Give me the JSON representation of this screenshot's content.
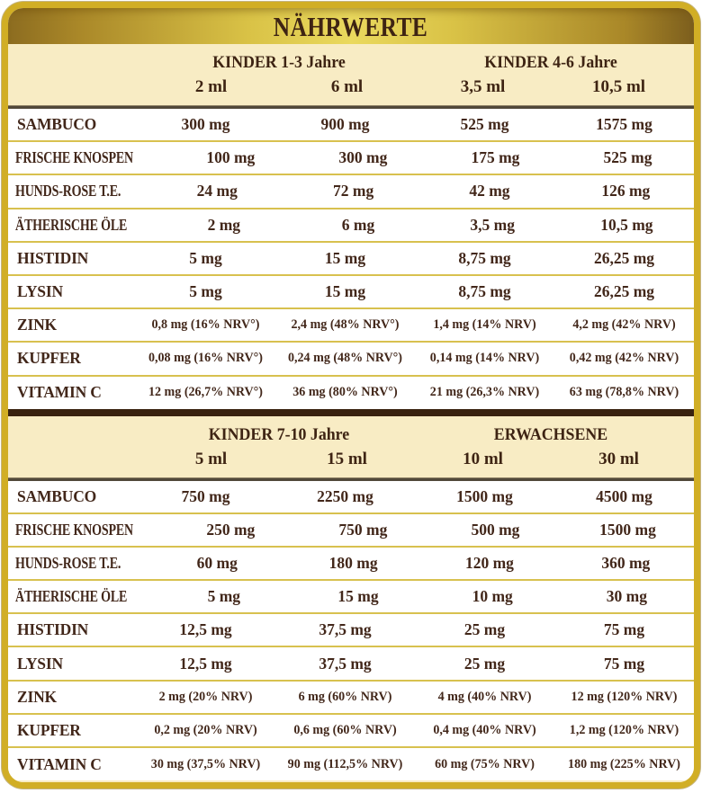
{
  "title": "NÄHRWERTE",
  "colors": {
    "card_border_gold": "#d1ae25",
    "title_gradient_center": "#ead95e",
    "title_gradient_edge": "#8c6c20",
    "header_cream": "#f8ecc4",
    "text_dark_brown": "#42271a",
    "row_separator_gold": "#d8c14f",
    "section_divider_brown": "#39220f",
    "header_rule_gray": "#51483a"
  },
  "sections": [
    {
      "groups": [
        {
          "label": "KINDER 1-3 Jahre",
          "doses": [
            "2 ml",
            "6 ml"
          ]
        },
        {
          "label": "KINDER 4-6 Jahre",
          "doses": [
            "3,5 ml",
            "10,5 ml"
          ]
        }
      ],
      "rows": [
        {
          "label": "SAMBUCO",
          "values": [
            "300 mg",
            "900 mg",
            "525 mg",
            "1575 mg"
          ]
        },
        {
          "label": "FRISCHE KNOSPEN",
          "values": [
            "100 mg",
            "300 mg",
            "175 mg",
            "525 mg"
          ]
        },
        {
          "label": "HUNDS-ROSE T.E.",
          "values": [
            "24 mg",
            "72 mg",
            "42 mg",
            "126 mg"
          ]
        },
        {
          "label": "ÄTHERISCHE ÖLE",
          "values": [
            "2 mg",
            "6 mg",
            "3,5 mg",
            "10,5 mg"
          ]
        },
        {
          "label": "HISTIDIN",
          "values": [
            "5 mg",
            "15 mg",
            "8,75 mg",
            "26,25 mg"
          ]
        },
        {
          "label": "LYSIN",
          "values": [
            "5 mg",
            "15 mg",
            "8,75 mg",
            "26,25 mg"
          ]
        },
        {
          "label": "ZINK",
          "values": [
            "0,8 mg (16% NRV°)",
            "2,4 mg (48% NRV°)",
            "1,4 mg (14% NRV)",
            "4,2 mg (42% NRV)"
          ]
        },
        {
          "label": "KUPFER",
          "values": [
            "0,08 mg (16% NRV°)",
            "0,24 mg (48% NRV°)",
            "0,14 mg (14% NRV)",
            "0,42 mg (42% NRV)"
          ]
        },
        {
          "label": "VITAMIN C",
          "values": [
            "12 mg (26,7% NRV°)",
            "36 mg (80% NRV°)",
            "21 mg (26,3% NRV)",
            "63 mg (78,8% NRV)"
          ]
        }
      ]
    },
    {
      "groups": [
        {
          "label": "KINDER 7-10 Jahre",
          "doses": [
            "5 ml",
            "15 ml"
          ]
        },
        {
          "label": "ERWACHSENE",
          "doses": [
            "10 ml",
            "30 ml"
          ]
        }
      ],
      "rows": [
        {
          "label": "SAMBUCO",
          "values": [
            "750 mg",
            "2250 mg",
            "1500 mg",
            "4500 mg"
          ]
        },
        {
          "label": "FRISCHE KNOSPEN",
          "values": [
            "250 mg",
            "750 mg",
            "500 mg",
            "1500 mg"
          ]
        },
        {
          "label": "HUNDS-ROSE T.E.",
          "values": [
            "60 mg",
            "180 mg",
            "120 mg",
            "360 mg"
          ]
        },
        {
          "label": "ÄTHERISCHE ÖLE",
          "values": [
            "5 mg",
            "15 mg",
            "10 mg",
            "30 mg"
          ]
        },
        {
          "label": "HISTIDIN",
          "values": [
            "12,5 mg",
            "37,5 mg",
            "25 mg",
            "75 mg"
          ]
        },
        {
          "label": "LYSIN",
          "values": [
            "12,5 mg",
            "37,5 mg",
            "25 mg",
            "75 mg"
          ]
        },
        {
          "label": "ZINK",
          "values": [
            "2 mg (20% NRV)",
            "6 mg (60% NRV)",
            "4 mg (40% NRV)",
            "12 mg (120% NRV)"
          ]
        },
        {
          "label": "KUPFER",
          "values": [
            "0,2 mg (20% NRV)",
            "0,6 mg (60% NRV)",
            "0,4 mg (40% NRV)",
            "1,2 mg (120% NRV)"
          ]
        },
        {
          "label": "VITAMIN C",
          "values": [
            "30 mg (37,5% NRV)",
            "90 mg (112,5% NRV)",
            "60 mg (75% NRV)",
            "180 mg (225% NRV)"
          ]
        }
      ]
    }
  ]
}
